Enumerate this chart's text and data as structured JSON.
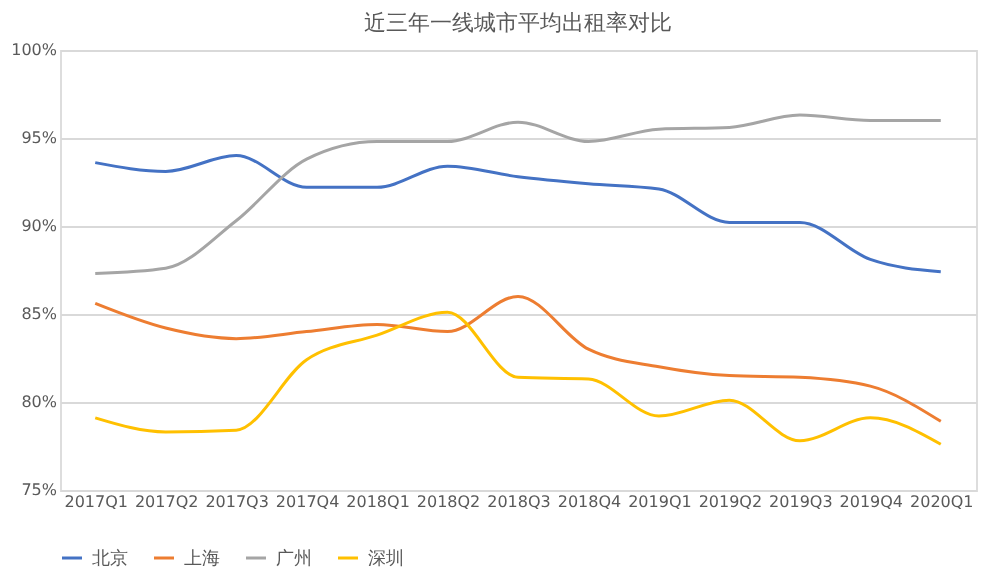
{
  "chart_data": {
    "type": "line",
    "title": "近三年一线城市平均出租率对比",
    "categories": [
      "2017Q1",
      "2017Q2",
      "2017Q3",
      "2017Q4",
      "2018Q1",
      "2018Q2",
      "2018Q3",
      "2018Q4",
      "2019Q1",
      "2019Q2",
      "2019Q3",
      "2019Q4",
      "2020Q1"
    ],
    "series": [
      {
        "name": "北京",
        "color": "#4472c4",
        "values": [
          93.6,
          93.1,
          94.0,
          92.2,
          92.2,
          93.4,
          92.8,
          92.4,
          92.1,
          90.2,
          90.2,
          88.1,
          87.4
        ]
      },
      {
        "name": "上海",
        "color": "#ed7d31",
        "values": [
          85.6,
          84.2,
          83.6,
          84.0,
          84.4,
          84.0,
          86.0,
          83.0,
          82.0,
          81.5,
          81.4,
          80.9,
          78.9
        ]
      },
      {
        "name": "广州",
        "color": "#a5a5a5",
        "values": [
          87.3,
          87.6,
          90.3,
          93.8,
          94.8,
          94.8,
          95.9,
          94.8,
          95.5,
          95.6,
          96.3,
          96.0,
          96.0
        ]
      },
      {
        "name": "深圳",
        "color": "#ffc000",
        "values": [
          79.1,
          78.3,
          78.4,
          82.4,
          83.8,
          85.1,
          81.4,
          81.3,
          79.2,
          80.1,
          77.8,
          79.1,
          77.6
        ]
      }
    ],
    "ylim": [
      75,
      100
    ],
    "yticks": [
      {
        "value": 75,
        "label": "75%"
      },
      {
        "value": 80,
        "label": "80%"
      },
      {
        "value": 85,
        "label": "85%"
      },
      {
        "value": 90,
        "label": "90%"
      },
      {
        "value": 95,
        "label": "95%"
      },
      {
        "value": 100,
        "label": "100%"
      }
    ],
    "grid": "y",
    "legend": "bottom",
    "marker": "none",
    "line_style": "solid"
  }
}
